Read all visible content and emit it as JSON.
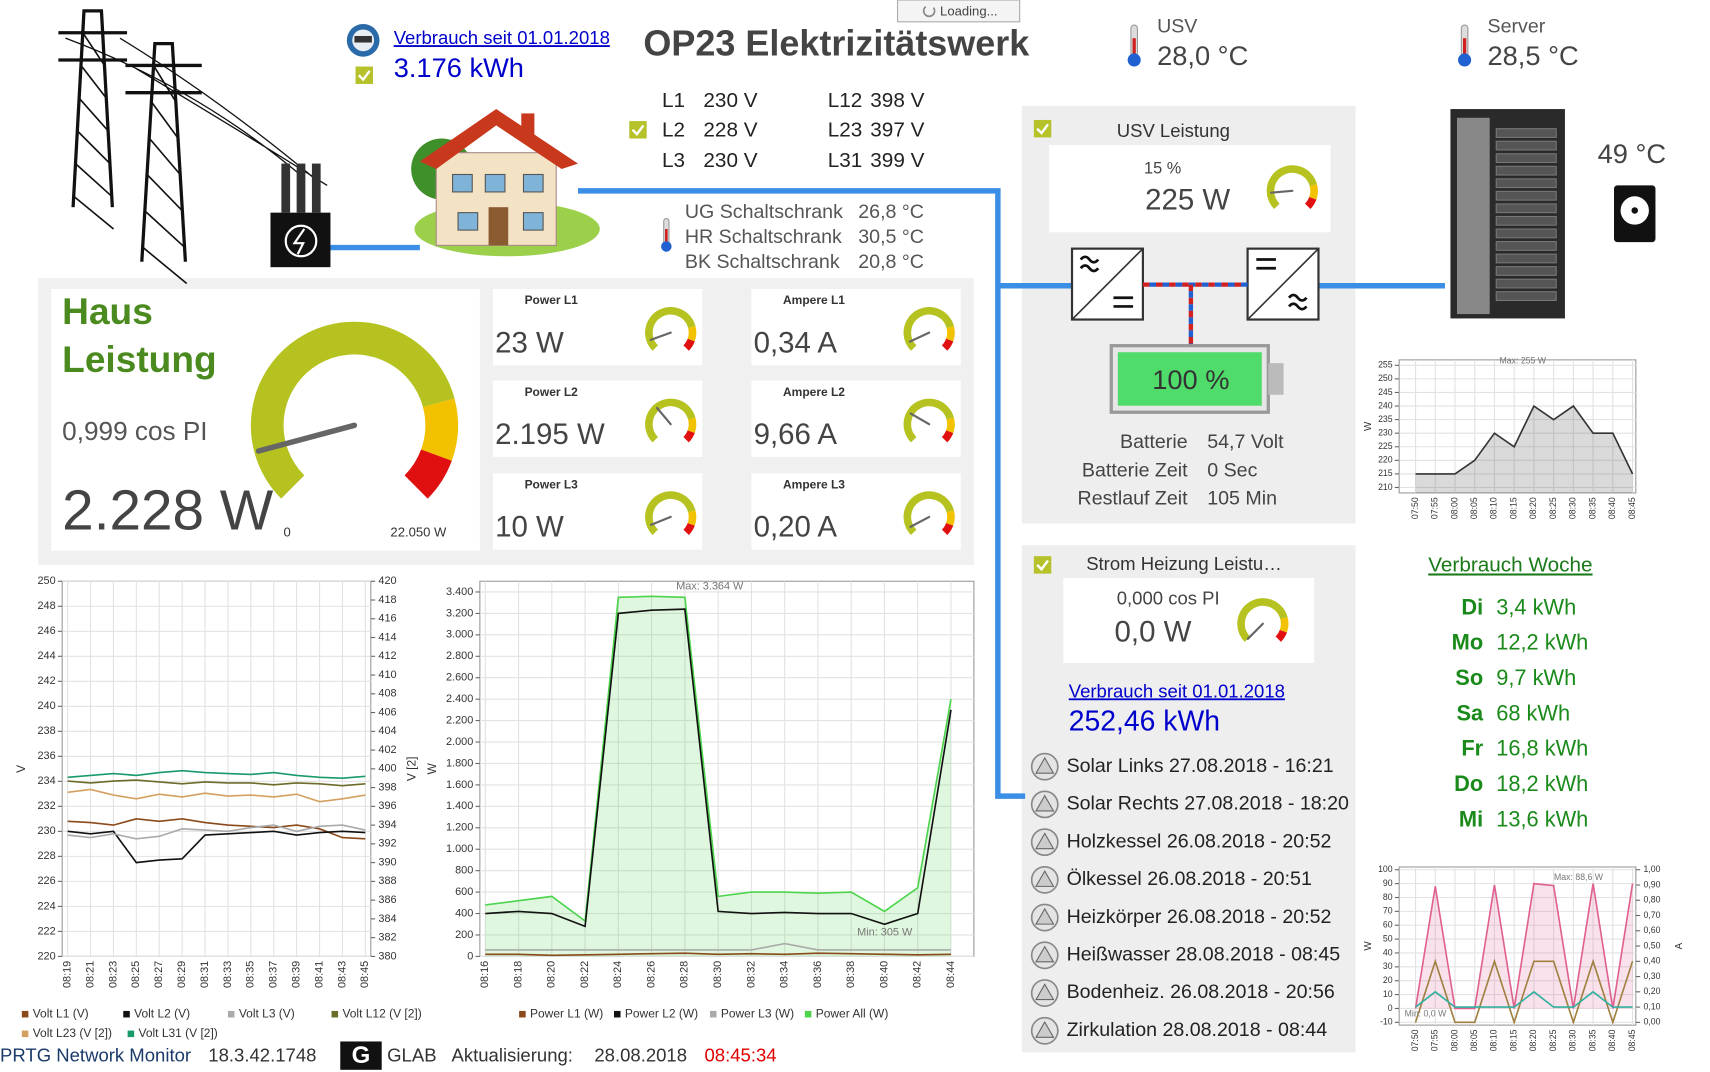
{
  "header": {
    "loading": "Loading...",
    "title": "OP23 Elektrizitätswerk",
    "consumption_link": "Verbrauch seit 01.01.2018",
    "consumption_value": "3.176 kWh"
  },
  "temps": [
    {
      "label": "USV",
      "value": "28,0 °C"
    },
    {
      "label": "Server",
      "value": "28,5 °C"
    }
  ],
  "server_disk_temp": "49 °C",
  "voltages": [
    [
      "L1",
      "230 V"
    ],
    [
      "L2",
      "228 V"
    ],
    [
      "L3",
      "230 V"
    ],
    [
      "L12",
      "398 V"
    ],
    [
      "L23",
      "397 V"
    ],
    [
      "L31",
      "399 V"
    ]
  ],
  "cabinets": [
    [
      "UG Schaltschrank",
      "26,8 °C"
    ],
    [
      "HR Schaltschrank",
      "30,5 °C"
    ],
    [
      "BK Schaltschrank",
      "20,8 °C"
    ]
  ],
  "haus": {
    "title_line1": "Haus",
    "title_line2": "Leistung",
    "cos": "0,999 cos PI",
    "value": "2.228 W",
    "gauge_min": "0",
    "gauge_max": "22.050 W"
  },
  "tiles": [
    {
      "label": "Power L1",
      "value": "23 W"
    },
    {
      "label": "Ampere L1",
      "value": "0,34 A"
    },
    {
      "label": "Power L2",
      "value": "2.195 W"
    },
    {
      "label": "Ampere L2",
      "value": "9,66 A"
    },
    {
      "label": "Power L3",
      "value": "10 W"
    },
    {
      "label": "Ampere L3",
      "value": "0,20 A"
    }
  ],
  "usv": {
    "title": "USV Leistung",
    "percent": "15 %",
    "value": "225 W",
    "battery": "100 %",
    "rows": [
      [
        "Batterie",
        "54,7 Volt"
      ],
      [
        "Batterie Zeit",
        "0 Sec"
      ],
      [
        "Restlauf Zeit",
        "105 Min"
      ]
    ]
  },
  "heizung": {
    "title": "Strom Heizung Leistu…",
    "cos": "0,000 cos PI",
    "value": "0,0 W",
    "link": "Verbrauch seit 01.01.2018",
    "total": "252,46 kWh",
    "items": [
      "Solar Links 27.08.2018 - 16:21",
      "Solar Rechts 27.08.2018 - 18:20",
      "Holzkessel 26.08.2018 - 20:52",
      "Ölkessel 26.08.2018 - 20:51",
      "Heizkörper 26.08.2018 - 20:52",
      "Heißwasser 28.08.2018 - 08:45",
      "Bodenheiz. 26.08.2018 - 20:56",
      "Zirkulation 28.08.2018 - 08:44"
    ]
  },
  "week": {
    "title": "Verbrauch Woche",
    "rows": [
      [
        "Di",
        "3,4 kWh"
      ],
      [
        "Mo",
        "12,2 kWh"
      ],
      [
        "So",
        "9,7 kWh"
      ],
      [
        "Sa",
        "68 kWh"
      ],
      [
        "Fr",
        "16,8 kWh"
      ],
      [
        "Do",
        "18,2 kWh"
      ],
      [
        "Mi",
        "13,6 kWh"
      ]
    ]
  },
  "footer": {
    "product": "PRTG Network Monitor",
    "version": "18.3.42.1748",
    "logo": "G",
    "org": "GLAB",
    "update_label": "Aktualisierung:",
    "date": "28.08.2018",
    "time": "08:45:34"
  },
  "chart_data": [
    {
      "type": "line",
      "ylabel": "V",
      "y2label": "V [2]",
      "categories": [
        "08:19",
        "08:21",
        "08:23",
        "08:25",
        "08:27",
        "08:29",
        "08:31",
        "08:33",
        "08:35",
        "08:37",
        "08:39",
        "08:41",
        "08:43",
        "08:45"
      ],
      "ylim": [
        220,
        250
      ],
      "yticks": [
        220,
        222,
        224,
        226,
        228,
        230,
        232,
        234,
        236,
        238,
        240,
        242,
        244,
        246,
        248,
        250
      ],
      "y2lim": [
        380,
        420
      ],
      "y2ticks": [
        380,
        382,
        384,
        386,
        388,
        390,
        392,
        394,
        396,
        398,
        400,
        402,
        404,
        406,
        408,
        410,
        412,
        414,
        416,
        418,
        420
      ],
      "grid": true,
      "series": [
        {
          "name": "Volt L1 (V)",
          "color": "#8b4a1c",
          "values": [
            230.8,
            230.7,
            230.5,
            231,
            230.8,
            231,
            230.7,
            230.5,
            230.4,
            230.3,
            230.5,
            230.2,
            229.5,
            229.4
          ]
        },
        {
          "name": "Volt L2 (V)",
          "color": "#111111",
          "values": [
            230,
            229.8,
            230,
            227.5,
            227.7,
            227.8,
            229.7,
            229.8,
            229.9,
            230,
            229.7,
            229.9,
            230,
            229.9
          ]
        },
        {
          "name": "Volt L3 (V)",
          "color": "#aaaaaa",
          "values": [
            229.7,
            229.5,
            229.8,
            229.4,
            229.6,
            230.2,
            230.1,
            230,
            230.3,
            230.5,
            230,
            230.4,
            230.5,
            230.1
          ]
        },
        {
          "name": "Volt L12 (V [2])",
          "color": "#6b6b2a",
          "axis": "y2",
          "values": [
            398.7,
            398.5,
            398.7,
            398.8,
            398.6,
            398.4,
            398.6,
            398.5,
            398.5,
            398.3,
            398.5,
            398.4,
            398.2,
            398.4
          ]
        },
        {
          "name": "Volt L23 (V [2])",
          "color": "#d4a060",
          "axis": "y2",
          "values": [
            397.5,
            397.8,
            397.2,
            396.8,
            397.3,
            397.0,
            397.4,
            397.1,
            397.2,
            397.0,
            397.3,
            396.5,
            396.8,
            397.2
          ]
        },
        {
          "name": "Volt L31 (V [2])",
          "color": "#1a9a6a",
          "axis": "y2",
          "values": [
            399.1,
            399.3,
            399.5,
            399.3,
            399.6,
            399.8,
            399.6,
            399.5,
            399.4,
            399.6,
            399.3,
            399.1,
            399.0,
            399.2
          ]
        }
      ]
    },
    {
      "type": "line",
      "ylabel": "W",
      "categories": [
        "08:16",
        "08:18",
        "08:20",
        "08:22",
        "08:24",
        "08:26",
        "08:28",
        "08:30",
        "08:32",
        "08:34",
        "08:36",
        "08:38",
        "08:40",
        "08:42",
        "08:44"
      ],
      "ylim": [
        0,
        3500
      ],
      "yticks": [
        0,
        200,
        400,
        600,
        800,
        {
          "value": 1000,
          "label": "1.000"
        },
        {
          "value": 1200,
          "label": "1.200"
        },
        {
          "value": 1400,
          "label": "1.400"
        },
        {
          "value": 1600,
          "label": "1.600"
        },
        {
          "value": 1800,
          "label": "1.800"
        },
        {
          "value": 2000,
          "label": "2.000"
        },
        {
          "value": 2200,
          "label": "2.200"
        },
        {
          "value": 2400,
          "label": "2.400"
        },
        {
          "value": 2600,
          "label": "2.600"
        },
        {
          "value": 2800,
          "label": "2.800"
        },
        {
          "value": 3000,
          "label": "3.000"
        },
        {
          "value": 3200,
          "label": "3.200"
        },
        {
          "value": 3400,
          "label": "3.400"
        }
      ],
      "grid": true,
      "annotations": [
        "Max: 3.364 W",
        "Min: 305 W"
      ],
      "series": [
        {
          "name": "Power All (W)",
          "color": "#4cd44c",
          "fill": true,
          "values": [
            480,
            520,
            560,
            330,
            3350,
            3360,
            3350,
            560,
            600,
            600,
            590,
            600,
            420,
            640,
            2400
          ]
        },
        {
          "name": "Power L1 (W)",
          "color": "#8b4a1c",
          "values": [
            20,
            20,
            10,
            15,
            20,
            25,
            30,
            20,
            25,
            20,
            30,
            25,
            20,
            15,
            20
          ]
        },
        {
          "name": "Power L2 (W)",
          "color": "#111111",
          "values": [
            400,
            420,
            400,
            280,
            3200,
            3230,
            3240,
            420,
            400,
            410,
            400,
            400,
            300,
            400,
            2300
          ]
        },
        {
          "name": "Power L3 (W)",
          "color": "#aaaaaa",
          "values": [
            60,
            60,
            60,
            60,
            60,
            60,
            60,
            60,
            60,
            120,
            60,
            60,
            60,
            60,
            60
          ]
        }
      ]
    },
    {
      "type": "line",
      "ylabel": "W",
      "categories": [
        "07:50",
        "07:55",
        "08:00",
        "08:05",
        "08:10",
        "08:15",
        "08:20",
        "08:25",
        "08:30",
        "08:35",
        "08:40",
        "08:45"
      ],
      "ylim": [
        208,
        257
      ],
      "yticks": [
        210,
        215,
        220,
        225,
        230,
        235,
        240,
        245,
        250,
        255
      ],
      "grid": true,
      "annotations": [
        "Max: 255 W"
      ],
      "series": [
        {
          "color": "#333333",
          "fill": true,
          "values": [
            215,
            215,
            215,
            220,
            230,
            225,
            240,
            235,
            240,
            230,
            230,
            215
          ]
        }
      ]
    },
    {
      "type": "line",
      "ylabel": "W",
      "y2label": "A",
      "categories": [
        "07:50",
        "07:55",
        "08:00",
        "08:05",
        "08:10",
        "08:15",
        "08:20",
        "08:25",
        "08:30",
        "08:35",
        "08:40",
        "08:45"
      ],
      "ylim": [
        -12,
        102
      ],
      "yticks": [
        -10,
        0,
        10,
        20,
        30,
        40,
        50,
        60,
        70,
        80,
        90,
        100
      ],
      "y2lim": [
        -0.018,
        1.018
      ],
      "y2ticks": [
        {
          "value": 0,
          "label": "0,00"
        },
        {
          "value": 0.1,
          "label": "0,10"
        },
        {
          "value": 0.2,
          "label": "0,20"
        },
        {
          "value": 0.3,
          "label": "0,30"
        },
        {
          "value": 0.4,
          "label": "0,40"
        },
        {
          "value": 0.5,
          "label": "0,50"
        },
        {
          "value": 0.6,
          "label": "0,60"
        },
        {
          "value": 0.7,
          "label": "0,70"
        },
        {
          "value": 0.8,
          "label": "0,80"
        },
        {
          "value": 0.9,
          "label": "0,90"
        },
        {
          "value": 1,
          "label": "1,00"
        }
      ],
      "grid": true,
      "annotations": [
        "Max: 88,6 W",
        "Min: 0,0 W"
      ],
      "series": [
        {
          "color": "#e06090",
          "fill": true,
          "values": [
            0,
            88,
            0,
            0,
            89,
            0,
            90,
            88.6,
            0,
            90,
            0,
            90
          ]
        },
        {
          "color": "#a08040",
          "axis": "y2",
          "values": [
            0,
            0.4,
            0,
            0,
            0.4,
            0,
            0.4,
            0.4,
            0,
            0.4,
            0,
            0.4
          ]
        },
        {
          "color": "#30b0a0",
          "axis": "y2",
          "values": [
            0.1,
            0.2,
            0.1,
            0.1,
            0.1,
            0.1,
            0.2,
            0.1,
            0.1,
            0.2,
            0.1,
            0.1
          ]
        }
      ]
    }
  ]
}
